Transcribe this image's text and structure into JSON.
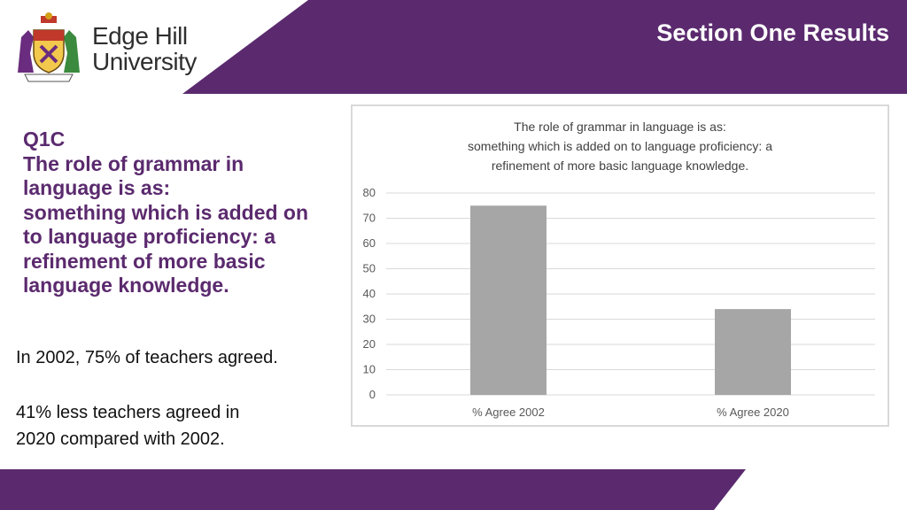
{
  "colors": {
    "brand_purple": "#5b2a6e",
    "bar_gray": "#a6a6a6",
    "grid_gray": "#d9d9d9"
  },
  "logo": {
    "line1": "Edge Hill",
    "line2": "University",
    "icon": "university-crest-icon"
  },
  "header": {
    "title": "Section One Results"
  },
  "question": {
    "lines": [
      "Q1C",
      "The role of grammar in",
      "language is as:",
      "something which is added on",
      "to language proficiency: a",
      "refinement of more basic",
      "language knowledge."
    ]
  },
  "notes": {
    "p1": "In 2002, 75% of teachers agreed.",
    "p2_line1": "41% less teachers agreed in",
    "p2_line2": "2020 compared with 2002."
  },
  "chart_data": {
    "type": "bar",
    "title_lines": [
      "The role of grammar in language is as:",
      "something which is added on to language proficiency: a",
      "refinement of more basic language knowledge."
    ],
    "categories": [
      "% Agree 2002",
      "% Agree 2020"
    ],
    "values": [
      75,
      34
    ],
    "ylim": [
      0,
      80
    ],
    "yticks": [
      0,
      10,
      20,
      30,
      40,
      50,
      60,
      70,
      80
    ],
    "grid": true,
    "xlabel": "",
    "ylabel": ""
  }
}
